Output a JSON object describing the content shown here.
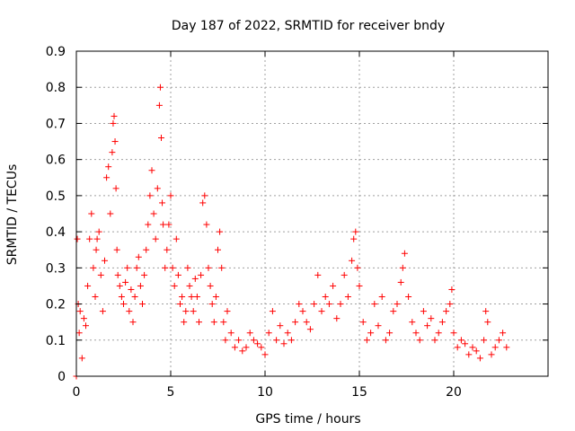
{
  "chart_data": {
    "type": "scatter",
    "title": "Day 187 of 2022, SRMTID for receiver bndy",
    "xlabel": "GPS time / hours",
    "ylabel": "SRMTID / TECUs",
    "xlim": [
      0,
      25
    ],
    "ylim": [
      0,
      0.9
    ],
    "xticks": [
      0,
      5,
      10,
      15,
      20
    ],
    "xtick_labels": [
      "0",
      "5",
      "10",
      "15",
      "20"
    ],
    "yticks": [
      0,
      0.1,
      0.2,
      0.3,
      0.4,
      0.5,
      0.6,
      0.7,
      0.8,
      0.9
    ],
    "ytick_labels": [
      "0",
      "0.1",
      "0.2",
      "0.3",
      "0.4",
      "0.5",
      "0.6",
      "0.7",
      "0.8",
      "0.9"
    ],
    "grid": true,
    "marker": "+",
    "color": "#ff0000",
    "series": [
      {
        "name": "SRMTID",
        "x": [
          0.0,
          0.05,
          0.1,
          0.15,
          0.2,
          0.3,
          0.4,
          0.5,
          0.6,
          0.7,
          0.8,
          0.9,
          1.0,
          1.05,
          1.1,
          1.2,
          1.3,
          1.4,
          1.5,
          1.6,
          1.7,
          1.8,
          1.9,
          1.95,
          2.0,
          2.05,
          2.1,
          2.15,
          2.2,
          2.3,
          2.4,
          2.5,
          2.6,
          2.7,
          2.8,
          2.9,
          3.0,
          3.1,
          3.2,
          3.3,
          3.4,
          3.5,
          3.6,
          3.7,
          3.8,
          3.9,
          4.0,
          4.1,
          4.2,
          4.3,
          4.4,
          4.45,
          4.5,
          4.55,
          4.6,
          4.7,
          4.8,
          4.9,
          5.0,
          5.1,
          5.2,
          5.3,
          5.4,
          5.5,
          5.6,
          5.7,
          5.8,
          5.9,
          6.0,
          6.1,
          6.2,
          6.3,
          6.4,
          6.5,
          6.6,
          6.7,
          6.8,
          6.9,
          7.0,
          7.1,
          7.2,
          7.3,
          7.4,
          7.5,
          7.6,
          7.7,
          7.8,
          7.9,
          8.0,
          8.2,
          8.4,
          8.6,
          8.8,
          9.0,
          9.2,
          9.4,
          9.6,
          9.8,
          10.0,
          10.2,
          10.4,
          10.6,
          10.8,
          11.0,
          11.2,
          11.4,
          11.6,
          11.8,
          12.0,
          12.2,
          12.4,
          12.6,
          12.8,
          13.0,
          13.2,
          13.4,
          13.6,
          13.8,
          14.0,
          14.2,
          14.4,
          14.6,
          14.7,
          14.8,
          14.9,
          15.0,
          15.2,
          15.4,
          15.6,
          15.8,
          16.0,
          16.2,
          16.4,
          16.6,
          16.8,
          17.0,
          17.2,
          17.3,
          17.4,
          17.6,
          17.8,
          18.0,
          18.2,
          18.4,
          18.6,
          18.8,
          19.0,
          19.2,
          19.4,
          19.6,
          19.8,
          19.9,
          20.0,
          20.2,
          20.4,
          20.6,
          20.8,
          21.0,
          21.2,
          21.4,
          21.6,
          21.7,
          21.8,
          22.0,
          22.2,
          22.4,
          22.6,
          22.8
        ],
        "y": [
          0.0,
          0.38,
          0.2,
          0.12,
          0.18,
          0.05,
          0.16,
          0.14,
          0.25,
          0.38,
          0.45,
          0.3,
          0.22,
          0.35,
          0.38,
          0.4,
          0.28,
          0.18,
          0.32,
          0.55,
          0.58,
          0.45,
          0.62,
          0.7,
          0.72,
          0.65,
          0.52,
          0.35,
          0.28,
          0.25,
          0.22,
          0.2,
          0.26,
          0.3,
          0.18,
          0.24,
          0.15,
          0.22,
          0.3,
          0.33,
          0.25,
          0.2,
          0.28,
          0.35,
          0.42,
          0.5,
          0.57,
          0.45,
          0.38,
          0.52,
          0.75,
          0.8,
          0.66,
          0.48,
          0.42,
          0.3,
          0.35,
          0.42,
          0.5,
          0.3,
          0.25,
          0.38,
          0.28,
          0.2,
          0.22,
          0.15,
          0.18,
          0.3,
          0.25,
          0.22,
          0.18,
          0.27,
          0.22,
          0.15,
          0.28,
          0.48,
          0.5,
          0.42,
          0.3,
          0.25,
          0.2,
          0.15,
          0.22,
          0.35,
          0.4,
          0.3,
          0.15,
          0.1,
          0.18,
          0.12,
          0.08,
          0.1,
          0.07,
          0.08,
          0.12,
          0.1,
          0.09,
          0.08,
          0.06,
          0.12,
          0.18,
          0.1,
          0.14,
          0.09,
          0.12,
          0.1,
          0.15,
          0.2,
          0.18,
          0.15,
          0.13,
          0.2,
          0.28,
          0.18,
          0.22,
          0.2,
          0.25,
          0.16,
          0.2,
          0.28,
          0.22,
          0.32,
          0.38,
          0.4,
          0.3,
          0.25,
          0.15,
          0.1,
          0.12,
          0.2,
          0.14,
          0.22,
          0.1,
          0.12,
          0.18,
          0.2,
          0.26,
          0.3,
          0.34,
          0.22,
          0.15,
          0.12,
          0.1,
          0.18,
          0.14,
          0.16,
          0.1,
          0.12,
          0.15,
          0.18,
          0.2,
          0.24,
          0.12,
          0.08,
          0.1,
          0.09,
          0.06,
          0.08,
          0.07,
          0.05,
          0.1,
          0.18,
          0.15,
          0.06,
          0.08,
          0.1,
          0.12,
          0.08
        ],
        "density": "dense scatter with several hundred points; envelope approximated"
      }
    ]
  }
}
